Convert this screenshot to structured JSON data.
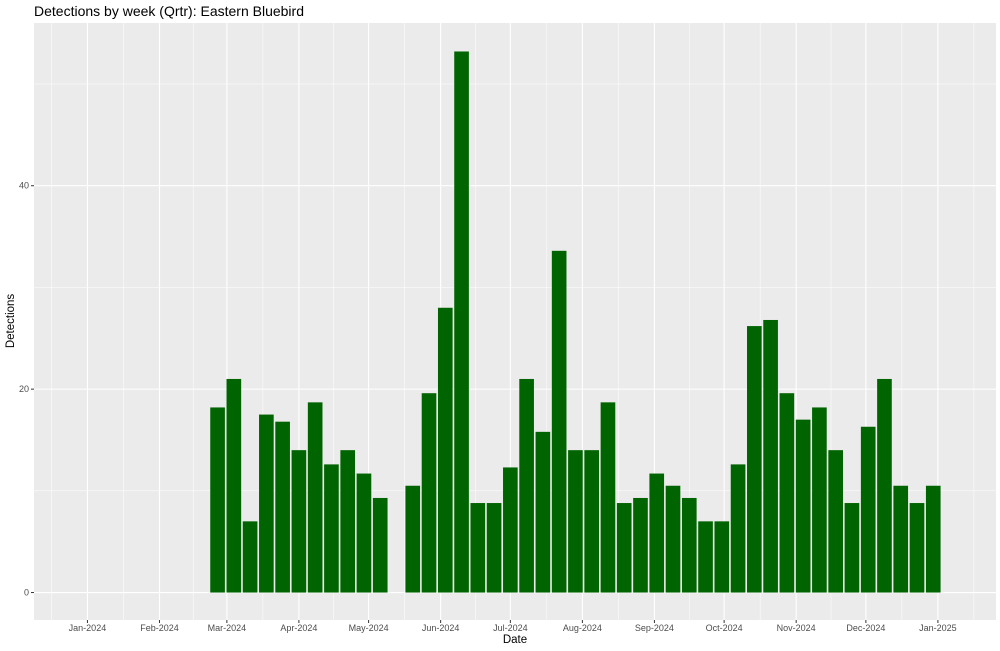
{
  "chart_data": {
    "type": "bar",
    "title": "Detections by week (Qrtr): Eastern Bluebird",
    "xlabel": "Date",
    "ylabel": "Detections",
    "ylim": [
      -2.7,
      56
    ],
    "xlim": [
      "2023-12-09",
      "2025-01-26"
    ],
    "y_ticks": [
      0,
      20,
      40
    ],
    "x_ticks": [
      {
        "date": "2024-01-01",
        "label": "Jan-2024"
      },
      {
        "date": "2024-02-01",
        "label": "Feb-2024"
      },
      {
        "date": "2024-03-01",
        "label": "Mar-2024"
      },
      {
        "date": "2024-04-01",
        "label": "Apr-2024"
      },
      {
        "date": "2024-05-01",
        "label": "May-2024"
      },
      {
        "date": "2024-06-01",
        "label": "Jun-2024"
      },
      {
        "date": "2024-07-01",
        "label": "Jul-2024"
      },
      {
        "date": "2024-08-01",
        "label": "Aug-2024"
      },
      {
        "date": "2024-09-01",
        "label": "Sep-2024"
      },
      {
        "date": "2024-10-01",
        "label": "Oct-2024"
      },
      {
        "date": "2024-11-01",
        "label": "Nov-2024"
      },
      {
        "date": "2024-12-01",
        "label": "Dec-2024"
      },
      {
        "date": "2025-01-01",
        "label": "Jan-2025"
      }
    ],
    "grid": true,
    "bar_color": "#006400",
    "panel_color": "#ebebeb",
    "grid_color": "#ffffff",
    "categories": [
      "2024-02-26",
      "2024-03-04",
      "2024-03-11",
      "2024-03-18",
      "2024-03-25",
      "2024-04-01",
      "2024-04-08",
      "2024-04-15",
      "2024-04-22",
      "2024-04-29",
      "2024-05-06",
      "2024-05-20",
      "2024-05-27",
      "2024-06-03",
      "2024-06-10",
      "2024-06-17",
      "2024-06-24",
      "2024-07-01",
      "2024-07-08",
      "2024-07-15",
      "2024-07-22",
      "2024-07-29",
      "2024-08-05",
      "2024-08-12",
      "2024-08-19",
      "2024-08-26",
      "2024-09-02",
      "2024-09-09",
      "2024-09-16",
      "2024-09-23",
      "2024-09-30",
      "2024-10-07",
      "2024-10-14",
      "2024-10-21",
      "2024-10-28",
      "2024-11-04",
      "2024-11-11",
      "2024-11-18",
      "2024-11-25",
      "2024-12-02",
      "2024-12-09",
      "2024-12-16",
      "2024-12-23",
      "2024-12-30"
    ],
    "values": [
      18.2,
      21,
      7,
      17.5,
      16.8,
      14,
      18.7,
      12.6,
      14,
      11.7,
      9.3,
      10.5,
      19.6,
      28,
      53.2,
      8.8,
      8.8,
      12.3,
      21,
      15.8,
      33.6,
      14,
      14,
      18.7,
      8.8,
      9.3,
      11.7,
      10.5,
      9.3,
      7,
      7,
      12.6,
      26.2,
      26.8,
      19.6,
      17,
      18.2,
      14,
      8.8,
      16.3,
      21,
      10.5,
      8.8,
      10.5
    ]
  }
}
